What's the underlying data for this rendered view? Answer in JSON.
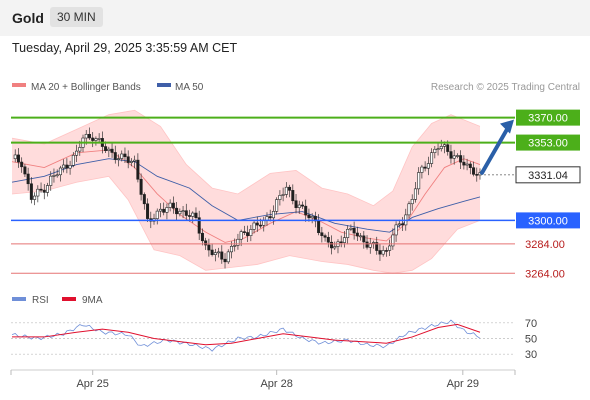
{
  "header": {
    "title": "Gold",
    "timeframe": "30 MIN"
  },
  "timestamp": "Tuesday, April 29, 2025 3:35:59 AM CET",
  "legend": {
    "ma_bb": "MA 20 + Bollinger Bands",
    "ma50": "MA 50",
    "rsi": "RSI",
    "rsi_ma": "9MA"
  },
  "credit": "Research © 2025 Trading Central",
  "colors": {
    "bull": "#2e7d32",
    "bear": "#b71c1c",
    "resistance": "#4caf1a",
    "support": "#2962ff",
    "lower_support": "#e57373",
    "bands": "#ffd8d8",
    "ma20": "#f08080",
    "ma50": "#3f5fa8",
    "arrow": "#2a5fa8",
    "rsi_line": "#6f8fd8",
    "rsi_ma_line": "#e0102e"
  },
  "chart_data": {
    "type": "candlestick",
    "x_ticks": [
      "Apr 25",
      "Apr 28",
      "Apr 29"
    ],
    "ylim": [
      3256,
      3382
    ],
    "levels": [
      {
        "label": "3370.00",
        "value": 3370,
        "kind": "resistance"
      },
      {
        "label": "3353.00",
        "value": 3353,
        "kind": "resistance"
      },
      {
        "label": "3331.04",
        "value": 3331.04,
        "kind": "last"
      },
      {
        "label": "3300.00",
        "value": 3300,
        "kind": "support"
      },
      {
        "label": "3284.00",
        "value": 3284,
        "kind": "lower_support"
      },
      {
        "label": "3264.00",
        "value": 3264,
        "kind": "lower_support"
      }
    ],
    "close_path": [
      [
        0,
        3342
      ],
      [
        3,
        3340
      ],
      [
        6,
        3315
      ],
      [
        9,
        3320
      ],
      [
        12,
        3328
      ],
      [
        16,
        3336
      ],
      [
        20,
        3345
      ],
      [
        22,
        3356
      ],
      [
        25,
        3358
      ],
      [
        28,
        3350
      ],
      [
        31,
        3346
      ],
      [
        34,
        3342
      ],
      [
        38,
        3340
      ],
      [
        40,
        3320
      ],
      [
        42,
        3298
      ],
      [
        46,
        3308
      ],
      [
        50,
        3308
      ],
      [
        54,
        3305
      ],
      [
        57,
        3300
      ],
      [
        60,
        3282
      ],
      [
        63,
        3276
      ],
      [
        66,
        3275
      ],
      [
        69,
        3284
      ],
      [
        72,
        3292
      ],
      [
        75,
        3296
      ],
      [
        78,
        3298
      ],
      [
        82,
        3312
      ],
      [
        85,
        3322
      ],
      [
        88,
        3312
      ],
      [
        91,
        3304
      ],
      [
        94,
        3300
      ],
      [
        97,
        3285
      ],
      [
        100,
        3282
      ],
      [
        103,
        3290
      ],
      [
        106,
        3293
      ],
      [
        110,
        3284
      ],
      [
        113,
        3280
      ],
      [
        116,
        3279
      ],
      [
        118,
        3290
      ],
      [
        121,
        3300
      ],
      [
        124,
        3315
      ],
      [
        126,
        3330
      ],
      [
        128,
        3338
      ],
      [
        130,
        3345
      ],
      [
        132,
        3350
      ],
      [
        135,
        3348
      ],
      [
        138,
        3342
      ],
      [
        141,
        3336
      ],
      [
        143,
        3335
      ],
      [
        145,
        3330
      ]
    ],
    "ma20": [
      [
        0,
        3340
      ],
      [
        10,
        3336
      ],
      [
        20,
        3346
      ],
      [
        30,
        3348
      ],
      [
        38,
        3336
      ],
      [
        45,
        3318
      ],
      [
        52,
        3304
      ],
      [
        60,
        3292
      ],
      [
        66,
        3285
      ],
      [
        72,
        3288
      ],
      [
        80,
        3298
      ],
      [
        88,
        3306
      ],
      [
        95,
        3300
      ],
      [
        102,
        3292
      ],
      [
        110,
        3288
      ],
      [
        116,
        3286
      ],
      [
        122,
        3298
      ],
      [
        128,
        3318
      ],
      [
        134,
        3336
      ],
      [
        140,
        3342
      ],
      [
        145,
        3338
      ]
    ],
    "ma50": [
      [
        0,
        3326
      ],
      [
        10,
        3330
      ],
      [
        20,
        3338
      ],
      [
        30,
        3342
      ],
      [
        38,
        3340
      ],
      [
        45,
        3330
      ],
      [
        55,
        3322
      ],
      [
        62,
        3310
      ],
      [
        70,
        3300
      ],
      [
        80,
        3304
      ],
      [
        90,
        3306
      ],
      [
        100,
        3298
      ],
      [
        110,
        3294
      ],
      [
        117,
        3292
      ],
      [
        124,
        3302
      ],
      [
        132,
        3308
      ],
      [
        140,
        3313
      ],
      [
        145,
        3316
      ]
    ],
    "bb_upper": [
      [
        0,
        3356
      ],
      [
        10,
        3352
      ],
      [
        20,
        3362
      ],
      [
        30,
        3372
      ],
      [
        38,
        3375
      ],
      [
        46,
        3364
      ],
      [
        54,
        3338
      ],
      [
        62,
        3322
      ],
      [
        70,
        3318
      ],
      [
        80,
        3332
      ],
      [
        88,
        3334
      ],
      [
        96,
        3322
      ],
      [
        104,
        3318
      ],
      [
        112,
        3310
      ],
      [
        118,
        3320
      ],
      [
        124,
        3350
      ],
      [
        130,
        3366
      ],
      [
        136,
        3372
      ],
      [
        145,
        3364
      ]
    ],
    "bb_lower": [
      [
        0,
        3318
      ],
      [
        10,
        3320
      ],
      [
        20,
        3326
      ],
      [
        30,
        3330
      ],
      [
        36,
        3314
      ],
      [
        44,
        3280
      ],
      [
        52,
        3276
      ],
      [
        60,
        3266
      ],
      [
        68,
        3268
      ],
      [
        76,
        3270
      ],
      [
        86,
        3276
      ],
      [
        96,
        3272
      ],
      [
        104,
        3270
      ],
      [
        112,
        3266
      ],
      [
        118,
        3264
      ],
      [
        124,
        3266
      ],
      [
        130,
        3274
      ],
      [
        138,
        3294
      ],
      [
        145,
        3300
      ]
    ],
    "rsi": {
      "levels": [
        70,
        50,
        30
      ],
      "ylim": [
        20,
        80
      ],
      "rsi": [
        [
          0,
          55
        ],
        [
          8,
          50
        ],
        [
          16,
          56
        ],
        [
          22,
          68
        ],
        [
          28,
          58
        ],
        [
          36,
          55
        ],
        [
          40,
          40
        ],
        [
          48,
          48
        ],
        [
          56,
          42
        ],
        [
          62,
          36
        ],
        [
          70,
          50
        ],
        [
          76,
          52
        ],
        [
          84,
          62
        ],
        [
          90,
          50
        ],
        [
          96,
          44
        ],
        [
          104,
          48
        ],
        [
          110,
          42
        ],
        [
          116,
          40
        ],
        [
          122,
          56
        ],
        [
          130,
          66
        ],
        [
          136,
          72
        ],
        [
          140,
          60
        ],
        [
          145,
          52
        ]
      ],
      "ma9": [
        [
          0,
          52
        ],
        [
          10,
          52
        ],
        [
          20,
          58
        ],
        [
          28,
          62
        ],
        [
          36,
          58
        ],
        [
          44,
          50
        ],
        [
          52,
          46
        ],
        [
          60,
          42
        ],
        [
          68,
          44
        ],
        [
          76,
          50
        ],
        [
          84,
          56
        ],
        [
          92,
          52
        ],
        [
          100,
          48
        ],
        [
          108,
          46
        ],
        [
          116,
          44
        ],
        [
          124,
          52
        ],
        [
          132,
          64
        ],
        [
          138,
          68
        ],
        [
          145,
          58
        ]
      ]
    }
  }
}
